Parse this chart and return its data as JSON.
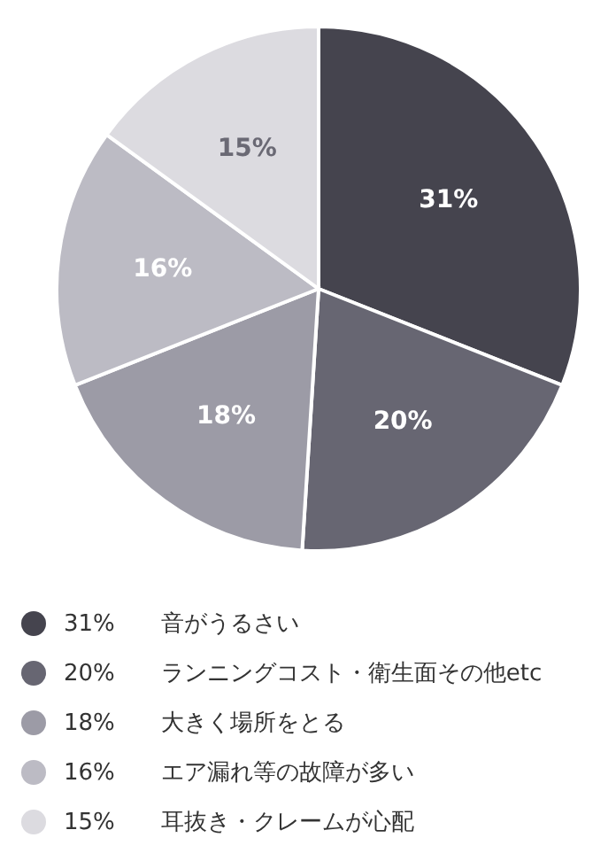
{
  "chart_data": {
    "type": "pie",
    "categories": [
      "音がうるさい",
      "ランニングコスト・衛生面その他etc",
      "大きく場所をとる",
      "エア漏れ等の故障が多い",
      "耳抜き・クレームが心配"
    ],
    "values": [
      31,
      20,
      18,
      16,
      15
    ],
    "colors": [
      "#45444e",
      "#676672",
      "#9c9ba6",
      "#bcbbc4",
      "#dcdbe0"
    ],
    "value_labels": [
      "31%",
      "20%",
      "18%",
      "16%",
      "15%"
    ],
    "legend": "bottom"
  }
}
